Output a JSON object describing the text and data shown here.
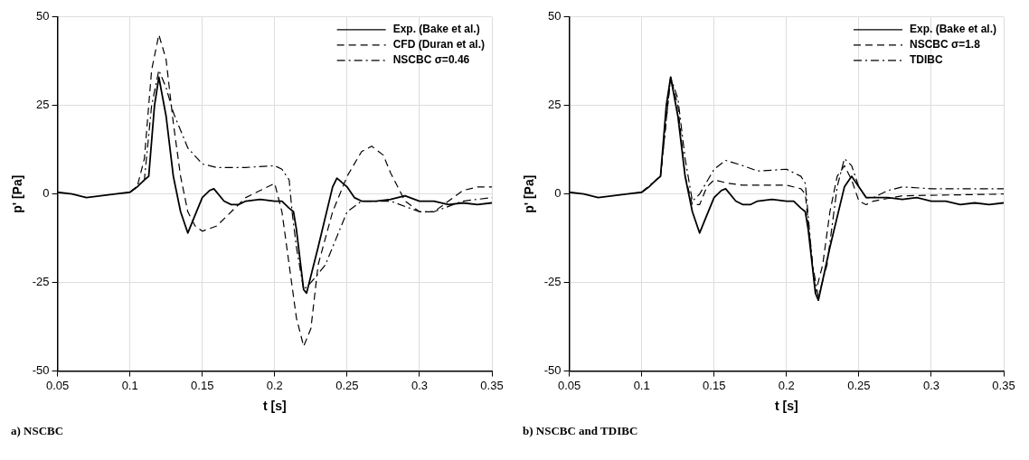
{
  "chart_data": [
    {
      "type": "line",
      "title": "a) NSCBC",
      "xlabel": "t [s]",
      "ylabel": "p' [Pa]",
      "xlim": [
        0.05,
        0.35
      ],
      "xticks": [
        0.05,
        0.1,
        0.15,
        0.2,
        0.25,
        0.3,
        0.35
      ],
      "ylim": [
        -50,
        50
      ],
      "yticks": [
        -50,
        -25,
        0,
        25,
        50
      ],
      "grid": true,
      "legend": "top right",
      "marker": "none",
      "series": [
        {
          "name": "Exp. (Bake et al.)",
          "color": "#000000",
          "line_style": "solid",
          "x": [
            0.05,
            0.06,
            0.07,
            0.08,
            0.09,
            0.1,
            0.105,
            0.11,
            0.113,
            0.117,
            0.12,
            0.125,
            0.13,
            0.135,
            0.14,
            0.145,
            0.15,
            0.155,
            0.158,
            0.165,
            0.17,
            0.175,
            0.18,
            0.19,
            0.2,
            0.205,
            0.21,
            0.213,
            0.215,
            0.22,
            0.222,
            0.23,
            0.24,
            0.243,
            0.25,
            0.255,
            0.26,
            0.27,
            0.28,
            0.29,
            0.3,
            0.31,
            0.32,
            0.33,
            0.34,
            0.35
          ],
          "values": [
            0.5,
            0,
            -1,
            -0.5,
            0,
            0.5,
            2,
            4,
            5,
            25,
            33,
            22,
            5,
            -5,
            -11,
            -6,
            -1,
            1,
            1.5,
            -2,
            -3,
            -3,
            -2,
            -1.5,
            -2,
            -2,
            -4,
            -5,
            -10,
            -27,
            -28,
            -15,
            2,
            4.5,
            2,
            -1,
            -2,
            -2,
            -1.5,
            -0.5,
            -2,
            -2,
            -3,
            -2.5,
            -3,
            -2.5
          ]
        },
        {
          "name": "CFD (Duran et al.)",
          "color": "#000000",
          "line_style": "dashed",
          "x": [
            0.1,
            0.105,
            0.11,
            0.115,
            0.12,
            0.125,
            0.13,
            0.135,
            0.14,
            0.145,
            0.15,
            0.16,
            0.17,
            0.18,
            0.19,
            0.2,
            0.205,
            0.21,
            0.215,
            0.22,
            0.225,
            0.23,
            0.24,
            0.25,
            0.26,
            0.267,
            0.275,
            0.28,
            0.29,
            0.3,
            0.31,
            0.32,
            0.33,
            0.34,
            0.35
          ],
          "values": [
            0.5,
            2,
            10,
            35,
            45,
            38,
            20,
            5,
            -5,
            -9,
            -10.5,
            -9,
            -5,
            -1,
            1,
            3,
            -5,
            -20,
            -35,
            -43,
            -38,
            -20,
            -5,
            5,
            12,
            13.5,
            11,
            6,
            -2,
            -5,
            -5,
            -2,
            1,
            2,
            2
          ]
        },
        {
          "name": "NSCBC σ=0.46",
          "color": "#000000",
          "line_style": "dashdot",
          "x": [
            0.1,
            0.11,
            0.115,
            0.12,
            0.125,
            0.13,
            0.14,
            0.15,
            0.16,
            0.18,
            0.2,
            0.205,
            0.21,
            0.212,
            0.215,
            0.22,
            0.225,
            0.235,
            0.24,
            0.25,
            0.26,
            0.28,
            0.3,
            0.31,
            0.33,
            0.35
          ],
          "values": [
            0.5,
            4,
            25,
            35,
            30,
            23,
            13,
            8.5,
            7.5,
            7.5,
            8,
            7,
            4,
            -5,
            -15,
            -27,
            -25,
            -20,
            -15,
            -5,
            -2,
            -2,
            -5,
            -5,
            -2,
            -1
          ]
        }
      ]
    },
    {
      "type": "line",
      "title": "b) NSCBC and TDIBC",
      "xlabel": "t [s]",
      "ylabel": "p' [Pa]",
      "xlim": [
        0.05,
        0.35
      ],
      "xticks": [
        0.05,
        0.1,
        0.15,
        0.2,
        0.25,
        0.3,
        0.35
      ],
      "ylim": [
        -50,
        50
      ],
      "yticks": [
        -50,
        -25,
        0,
        25,
        50
      ],
      "grid": true,
      "legend": "top right",
      "marker": "none",
      "series": [
        {
          "name": "Exp. (Bake et al.)",
          "color": "#000000",
          "line_style": "solid",
          "x": [
            0.05,
            0.06,
            0.07,
            0.08,
            0.09,
            0.1,
            0.105,
            0.11,
            0.113,
            0.117,
            0.12,
            0.125,
            0.13,
            0.135,
            0.14,
            0.145,
            0.15,
            0.155,
            0.158,
            0.165,
            0.17,
            0.175,
            0.18,
            0.19,
            0.2,
            0.205,
            0.21,
            0.213,
            0.215,
            0.22,
            0.222,
            0.23,
            0.24,
            0.245,
            0.25,
            0.255,
            0.26,
            0.27,
            0.28,
            0.29,
            0.3,
            0.31,
            0.32,
            0.33,
            0.34,
            0.35
          ],
          "values": [
            0.5,
            0,
            -1,
            -0.5,
            0,
            0.5,
            2,
            4,
            5,
            25,
            33,
            22,
            5,
            -5,
            -11,
            -6,
            -1,
            1,
            1.5,
            -2,
            -3,
            -3,
            -2,
            -1.5,
            -2,
            -2,
            -4,
            -5,
            -10,
            -28,
            -30,
            -15,
            2,
            5,
            2,
            -1,
            -1,
            -1,
            -1.5,
            -1,
            -2,
            -2,
            -3,
            -2.5,
            -3,
            -2.5
          ]
        },
        {
          "name": "NSCBC σ=1.8",
          "color": "#000000",
          "line_style": "dashed",
          "x": [
            0.1,
            0.113,
            0.12,
            0.125,
            0.13,
            0.135,
            0.14,
            0.145,
            0.15,
            0.16,
            0.17,
            0.2,
            0.21,
            0.213,
            0.218,
            0.22,
            0.225,
            0.23,
            0.235,
            0.24,
            0.245,
            0.25,
            0.255,
            0.26,
            0.28,
            0.35
          ],
          "values": [
            0.5,
            5,
            33,
            25,
            5,
            -3,
            -3,
            2,
            4,
            3,
            2.5,
            2.5,
            1.5,
            0,
            -20,
            -28,
            -20,
            -5,
            5,
            8,
            4,
            -2,
            -3,
            -2,
            -0.5,
            0
          ]
        },
        {
          "name": "TDIBC",
          "color": "#000000",
          "line_style": "dashdot",
          "x": [
            0.1,
            0.113,
            0.12,
            0.125,
            0.13,
            0.135,
            0.14,
            0.15,
            0.158,
            0.17,
            0.18,
            0.2,
            0.21,
            0.213,
            0.218,
            0.222,
            0.228,
            0.235,
            0.24,
            0.245,
            0.25,
            0.255,
            0.26,
            0.27,
            0.28,
            0.3,
            0.35
          ],
          "values": [
            0.5,
            5,
            33,
            27,
            10,
            -2,
            0,
            7,
            9.5,
            8,
            6.5,
            7,
            5,
            3,
            -20,
            -29,
            -20,
            2,
            10,
            8,
            2,
            -1,
            -1,
            1,
            2,
            1.5,
            1.5
          ]
        }
      ]
    }
  ]
}
